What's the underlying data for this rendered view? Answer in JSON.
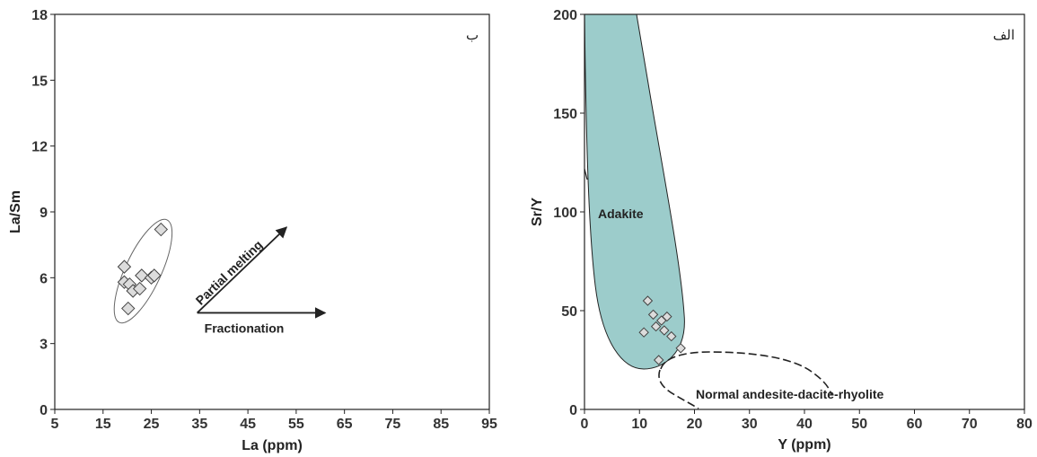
{
  "chart_data": [
    {
      "type": "scatter",
      "panel_label": "ب",
      "xlabel": "La (ppm)",
      "ylabel": "La/Sm",
      "xlim": [
        5,
        95
      ],
      "ylim": [
        0,
        18
      ],
      "xticks": [
        "5",
        "15",
        "25",
        "35",
        "45",
        "55",
        "65",
        "75",
        "85",
        "95"
      ],
      "yticks": [
        "0",
        "3",
        "6",
        "9",
        "12",
        "15",
        "18"
      ],
      "points": [
        {
          "x": 19.4,
          "y": 6.5
        },
        {
          "x": 19.4,
          "y": 5.8
        },
        {
          "x": 20.5,
          "y": 5.7
        },
        {
          "x": 21.2,
          "y": 5.4
        },
        {
          "x": 23.0,
          "y": 6.1
        },
        {
          "x": 22.6,
          "y": 5.5
        },
        {
          "x": 25.0,
          "y": 6.0
        },
        {
          "x": 25.6,
          "y": 6.1
        },
        {
          "x": 20.2,
          "y": 4.6
        },
        {
          "x": 27.0,
          "y": 8.2
        }
      ],
      "arrows": [
        {
          "label": "Partial melting",
          "from": [
            34.5,
            4.4
          ],
          "to": [
            53,
            8.3
          ]
        },
        {
          "label": "Fractionation",
          "from": [
            34.5,
            4.4
          ],
          "to": [
            61,
            4.4
          ]
        }
      ],
      "grid": false
    },
    {
      "type": "scatter",
      "panel_label": "الف",
      "xlabel": "Y (ppm)",
      "ylabel": "Sr/Y",
      "xlim": [
        0,
        80
      ],
      "ylim": [
        0,
        200
      ],
      "xticks": [
        "0",
        "10",
        "20",
        "30",
        "40",
        "50",
        "60",
        "70",
        "80"
      ],
      "yticks": [
        "0",
        "50",
        "100",
        "150",
        "200"
      ],
      "field_labels": {
        "adakite": "Adakite",
        "normal": "Normal andesite-dacite-rhyolite"
      },
      "adakite_color": "#9ccccb",
      "points": [
        {
          "x": 11.5,
          "y": 55
        },
        {
          "x": 12.5,
          "y": 48
        },
        {
          "x": 13.0,
          "y": 42
        },
        {
          "x": 14.0,
          "y": 45
        },
        {
          "x": 14.5,
          "y": 40
        },
        {
          "x": 15.0,
          "y": 47
        },
        {
          "x": 15.8,
          "y": 37
        },
        {
          "x": 10.8,
          "y": 39
        },
        {
          "x": 17.5,
          "y": 31
        },
        {
          "x": 13.5,
          "y": 25
        }
      ],
      "grid": false
    }
  ]
}
